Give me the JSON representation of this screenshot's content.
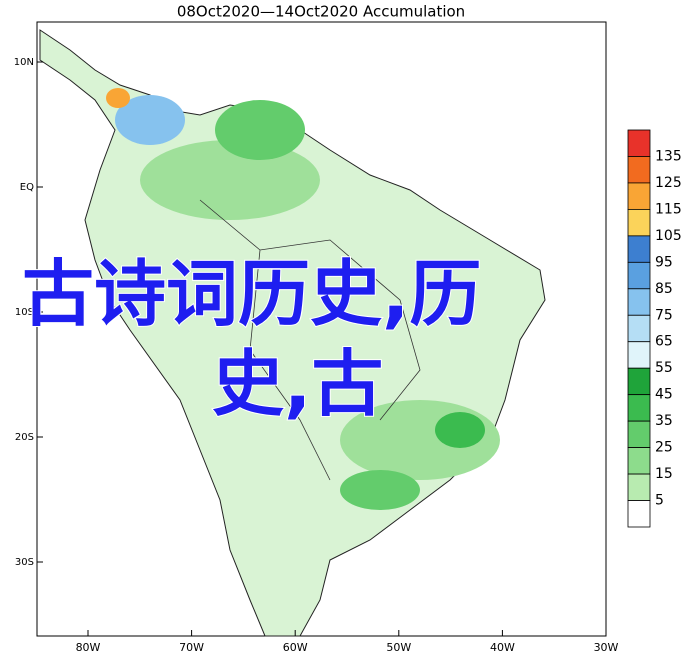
{
  "header": {
    "title": "08Oct2020—14Oct2020 Accumulation"
  },
  "map": {
    "lon_labels": [
      "80W",
      "70W",
      "60W",
      "50W",
      "40W",
      "30W"
    ],
    "lat_labels": [
      "10N",
      "EQ",
      "10S",
      "20S",
      "30S"
    ]
  },
  "legend": {
    "labels": [
      "135",
      "125",
      "115",
      "105",
      "95",
      "85",
      "75",
      "65",
      "55",
      "45",
      "35",
      "25",
      "15",
      "5"
    ],
    "colors": [
      "#e8322a",
      "#f26b1f",
      "#f9a535",
      "#fbd35a",
      "#3d7fd0",
      "#5aa0e0",
      "#86c2ee",
      "#b5def5",
      "#e0f4fa",
      "#1fa43a",
      "#3bbb4f",
      "#63cc6c",
      "#8ddc8c",
      "#b8ebb0",
      "#ffffff"
    ]
  },
  "overlay": {
    "line1": "古诗词历史,历",
    "line2": "史,古"
  }
}
